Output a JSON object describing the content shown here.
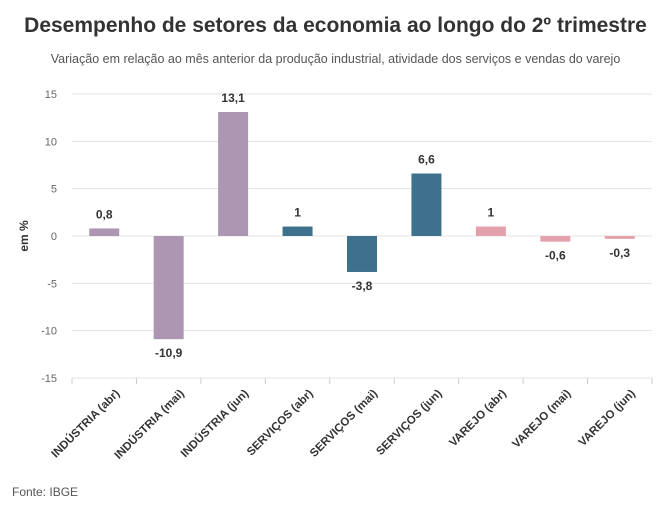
{
  "title": "Desempenho de setores da economia ao longo do 2º trimestre",
  "subtitle": "Variação em relação ao mês anterior da produção industrial, atividade dos serviços e vendas do varejo",
  "source": "Fonte: IBGE",
  "chart_data": {
    "type": "bar",
    "title": "Desempenho de setores da economia ao longo do 2º trimestre",
    "subtitle": "Variação em relação ao mês anterior da produção industrial, atividade dos serviços e vendas do varejo",
    "xlabel": "",
    "ylabel": "em %",
    "ylim": [
      -15,
      15
    ],
    "yticks": [
      15,
      10,
      5,
      0,
      -5,
      -10,
      -15
    ],
    "grid": true,
    "legend": "none",
    "categories": [
      "INDÚSTRIA (abr)",
      "INDÚSTRIA (mai)",
      "INDÚSTRIA (jun)",
      "SERVIÇOS (abr)",
      "SERVIÇOS (mai)",
      "SERVIÇOS (jun)",
      "VAREJO (abr)",
      "VAREJO (mai)",
      "VAREJO (jun)"
    ],
    "values": [
      0.8,
      -10.9,
      13.1,
      1,
      -3.8,
      6.6,
      1,
      -0.6,
      -0.3
    ],
    "value_labels": [
      "0,8",
      "-10,9",
      "13,1",
      "1",
      "-3,8",
      "6,6",
      "1",
      "-0,6",
      "-0,3"
    ],
    "colors": [
      "#ad96b2",
      "#ad96b2",
      "#ad96b2",
      "#3e718c",
      "#3e718c",
      "#3e718c",
      "#e3a1ab",
      "#e3a1ab",
      "#e3a1ab"
    ]
  }
}
